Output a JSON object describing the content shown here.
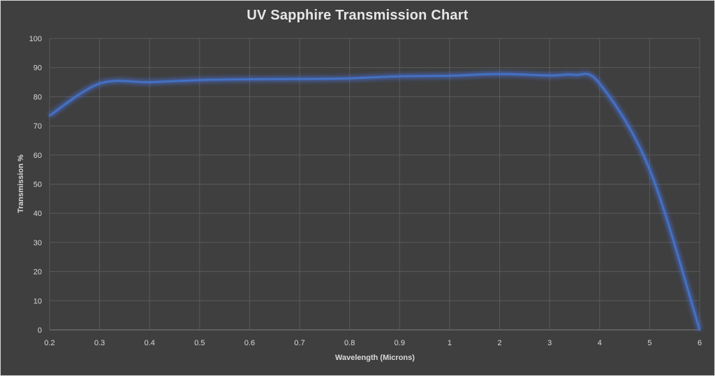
{
  "chart_data": {
    "type": "line",
    "title": "UV Sapphire Transmission Chart",
    "xlabel": "Wavelength (Microns)",
    "ylabel": "Transmission %",
    "x_scale": "categorical",
    "categories": [
      "0.2",
      "0.3",
      "0.4",
      "0.5",
      "0.6",
      "0.7",
      "0.8",
      "0.9",
      "1",
      "2",
      "3",
      "4",
      "5",
      "6"
    ],
    "ylim": [
      0,
      100
    ],
    "y_ticks": [
      0,
      10,
      20,
      30,
      40,
      50,
      60,
      70,
      80,
      90,
      100
    ],
    "grid": true,
    "legend": "none",
    "series": [
      {
        "values": [
          73.5,
          84.5,
          85,
          85.7,
          86,
          86.1,
          86.3,
          87,
          87.2,
          87.8,
          87.3,
          84.5,
          55,
          0
        ],
        "color": "#4472c4"
      }
    ],
    "extra_points": [
      {
        "x": "3.5",
        "y": 87.5
      }
    ]
  }
}
